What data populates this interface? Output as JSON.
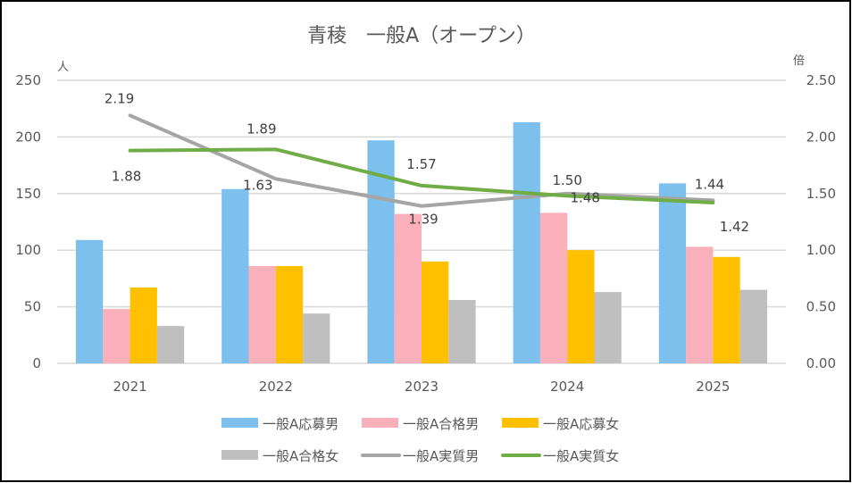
{
  "chart_data": {
    "type": "bar",
    "title": "青稜　一般A（オープン）",
    "categories": [
      "2021",
      "2022",
      "2023",
      "2024",
      "2025"
    ],
    "y_left": {
      "label": "人",
      "range": [
        0,
        250
      ],
      "ticks": [
        "0",
        "50",
        "100",
        "150",
        "200",
        "250"
      ]
    },
    "y_right": {
      "label": "倍",
      "range": [
        0,
        2.5
      ],
      "ticks": [
        "0.00",
        "0.50",
        "1.00",
        "1.50",
        "2.00",
        "2.50"
      ]
    },
    "grid": true,
    "legend_position": "bottom",
    "bar_series": [
      {
        "name": "一般A応募男",
        "color": "#7DC0EE",
        "values": [
          109,
          154,
          197,
          213,
          159
        ]
      },
      {
        "name": "一般A合格男",
        "color": "#F9B0BB",
        "values": [
          48,
          86,
          132,
          133,
          103
        ]
      },
      {
        "name": "一般A応募女",
        "color": "#FFC000",
        "values": [
          67,
          86,
          90,
          100,
          94
        ]
      },
      {
        "name": "一般A合格女",
        "color": "#BFBFBF",
        "values": [
          33,
          44,
          56,
          63,
          65
        ]
      }
    ],
    "line_series": [
      {
        "name": "一般A実質男",
        "color": "#A5A5A5",
        "axis": "right",
        "values": [
          2.19,
          1.63,
          1.39,
          1.5,
          1.44
        ],
        "labels": [
          "2.19",
          "1.63",
          "1.39",
          "1.50",
          "1.44"
        ]
      },
      {
        "name": "一般A実質女",
        "color": "#70AD47",
        "axis": "right",
        "values": [
          1.88,
          1.89,
          1.57,
          1.48,
          1.42
        ],
        "labels": [
          "1.88",
          "1.89",
          "1.57",
          "1.48",
          "1.42"
        ]
      }
    ],
    "legend": [
      "一般A応募男",
      "一般A合格男",
      "一般A応募女",
      "一般A合格女",
      "一般A実質男",
      "一般A実質女"
    ]
  }
}
